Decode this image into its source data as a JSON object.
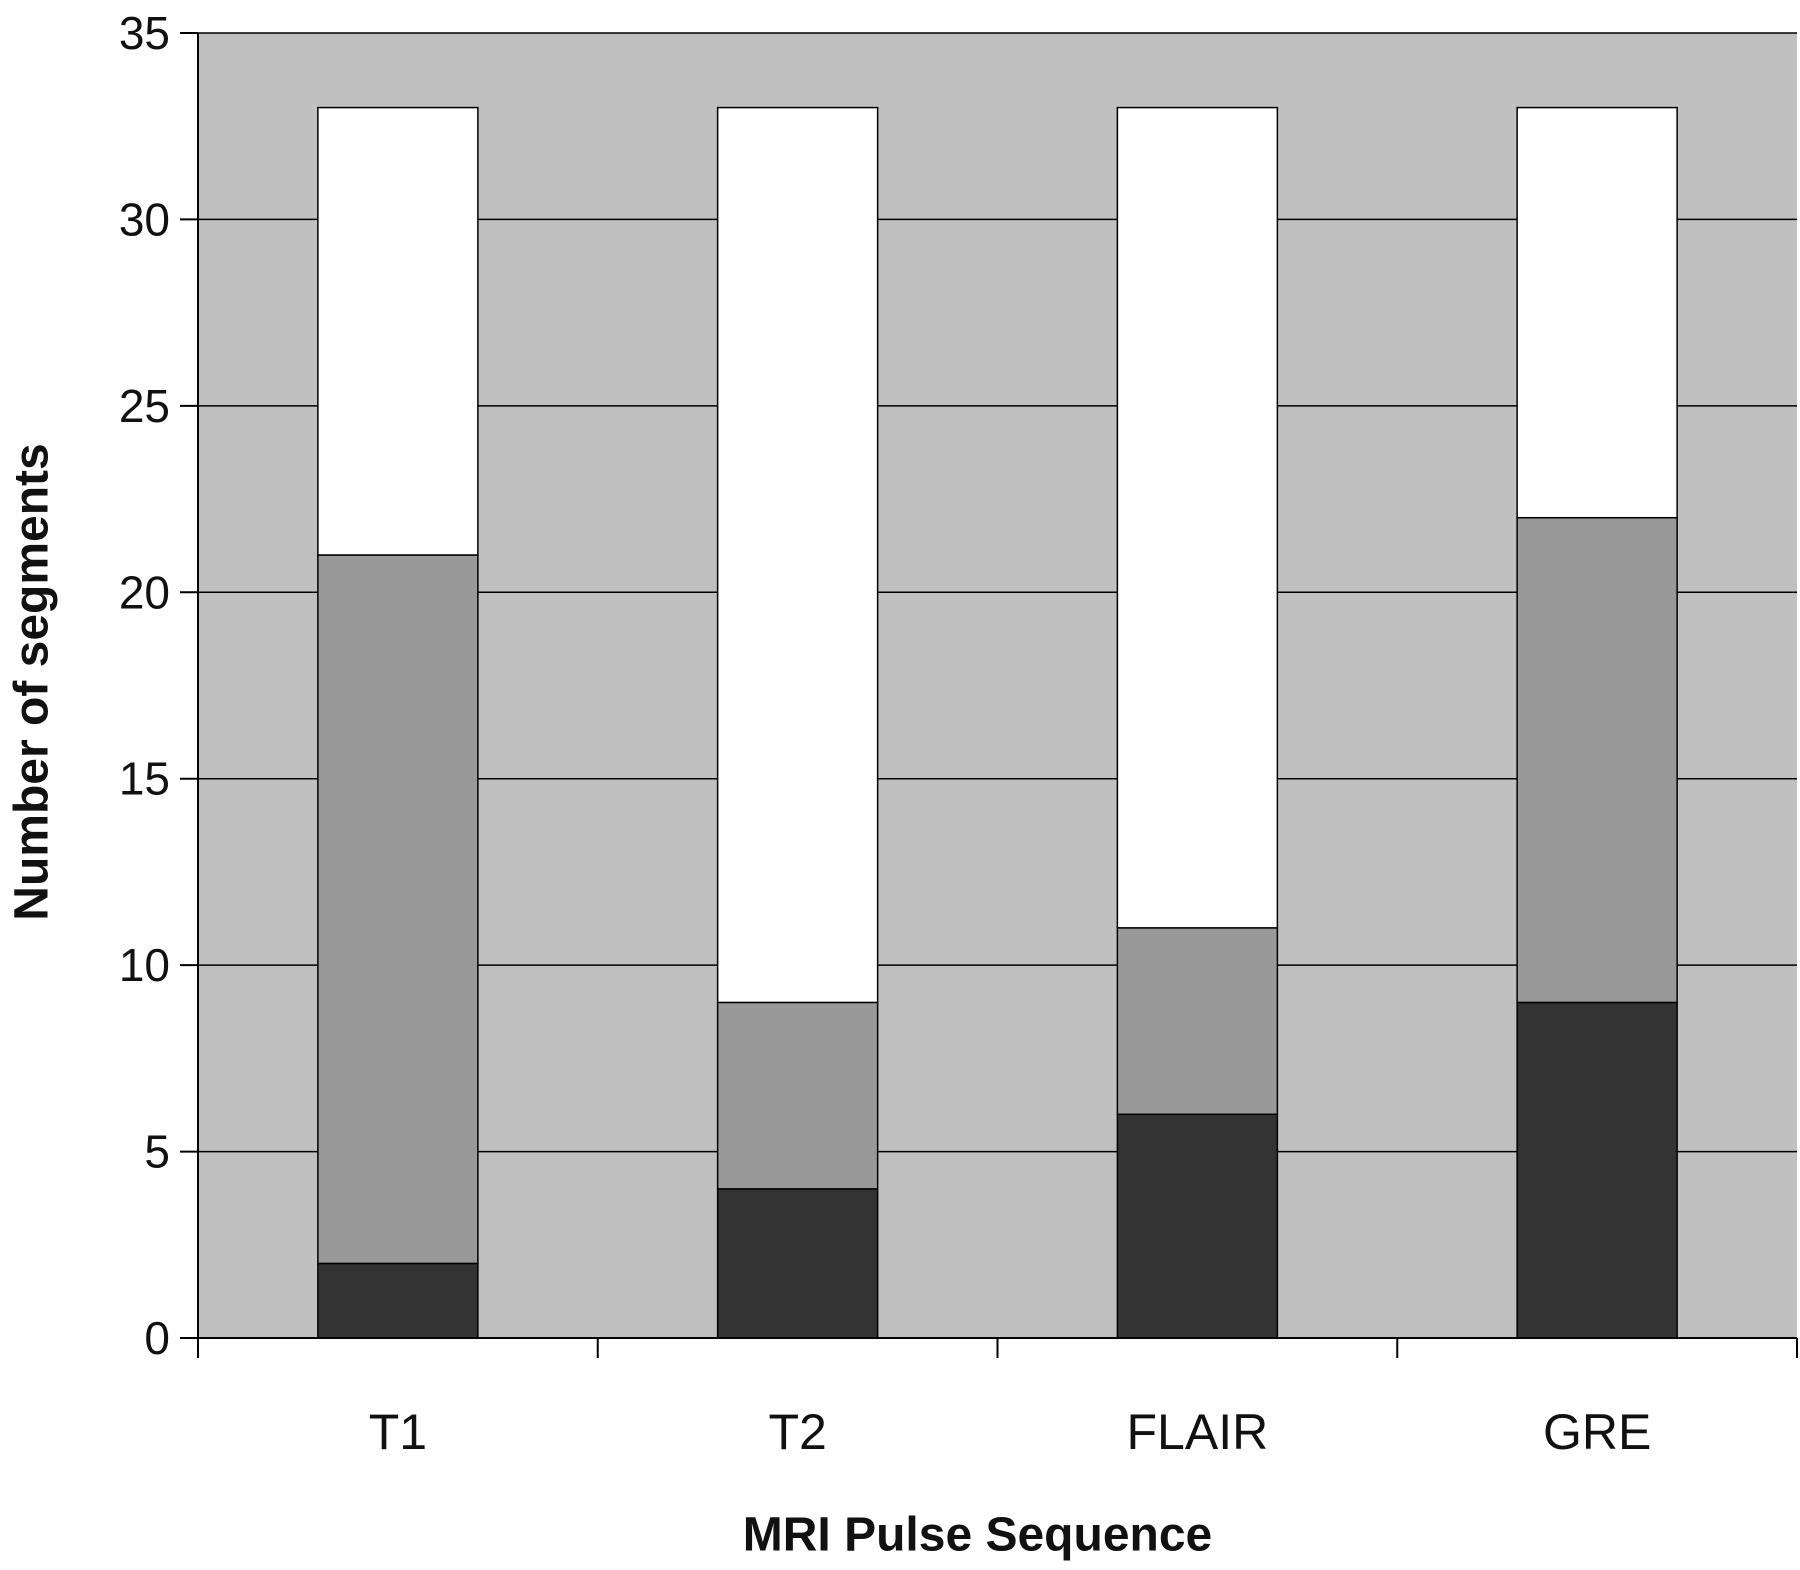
{
  "chart_data": {
    "type": "bar",
    "stacked": true,
    "categories": [
      "T1",
      "T2",
      "FLAIR",
      "GRE"
    ],
    "series": [
      {
        "values": [
          2,
          4,
          6,
          9
        ],
        "color": "#333333"
      },
      {
        "values": [
          19,
          5,
          5,
          13
        ],
        "color": "#999999"
      },
      {
        "values": [
          12,
          24,
          22,
          11
        ],
        "color": "#ffffff"
      }
    ],
    "totals": [
      33,
      33,
      33,
      33
    ],
    "title": "",
    "xlabel": "MRI Pulse Sequence",
    "ylabel": "Number of segments",
    "ylim": [
      0,
      35
    ],
    "yticks": [
      0,
      5,
      10,
      15,
      20,
      25,
      30,
      35
    ],
    "grid": true,
    "plot_background": "#c0c0c0",
    "gridline_color": "#000000",
    "legend": "none"
  }
}
